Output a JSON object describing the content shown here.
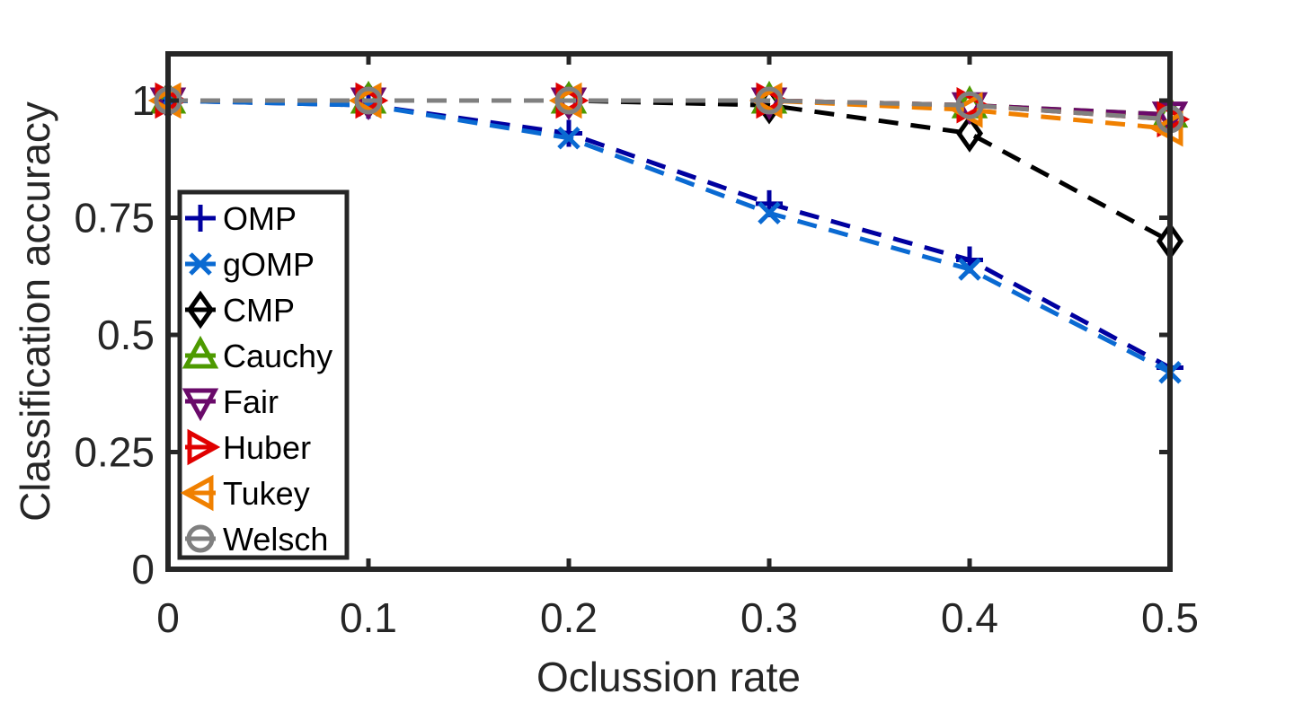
{
  "chart_data": {
    "type": "line",
    "title": "",
    "xlabel": "Oclussion rate",
    "ylabel": "Classification accuracy",
    "xlim": [
      0,
      0.5
    ],
    "ylim": [
      0,
      1.1
    ],
    "x": [
      0,
      0.1,
      0.2,
      0.3,
      0.4,
      0.5
    ],
    "x_ticks": [
      "0",
      "0.1",
      "0.2",
      "0.3",
      "0.4",
      "0.5"
    ],
    "y_ticks": [
      {
        "value": 0,
        "label": "0"
      },
      {
        "value": 0.25,
        "label": "0.25"
      },
      {
        "value": 0.5,
        "label": "0.5"
      },
      {
        "value": 0.75,
        "label": "0.75"
      },
      {
        "value": 1,
        "label": "1"
      }
    ],
    "grid": false,
    "legend_position": "bottom-left",
    "series": [
      {
        "name": "OMP",
        "color": "#0000a0",
        "marker": "plus",
        "values": [
          1.0,
          0.99,
          0.93,
          0.78,
          0.66,
          0.43
        ]
      },
      {
        "name": "gOMP",
        "color": "#0a6ad2",
        "marker": "x",
        "values": [
          1.0,
          0.99,
          0.92,
          0.76,
          0.64,
          0.42
        ]
      },
      {
        "name": "CMP",
        "color": "#000000",
        "marker": "diamond",
        "values": [
          1.0,
          1.0,
          1.0,
          0.99,
          0.93,
          0.7
        ]
      },
      {
        "name": "Cauchy",
        "color": "#4d9a00",
        "marker": "triangle-up",
        "values": [
          1.0,
          1.0,
          1.0,
          1.0,
          0.99,
          0.97
        ]
      },
      {
        "name": "Fair",
        "color": "#6a0a6a",
        "marker": "triangle-down",
        "values": [
          1.0,
          1.0,
          1.0,
          1.0,
          0.99,
          0.97
        ]
      },
      {
        "name": "Huber",
        "color": "#e00000",
        "marker": "triangle-right",
        "values": [
          1.0,
          1.0,
          1.0,
          1.0,
          0.99,
          0.96
        ]
      },
      {
        "name": "Tukey",
        "color": "#f08000",
        "marker": "triangle-left",
        "values": [
          1.0,
          1.0,
          1.0,
          1.0,
          0.98,
          0.94
        ]
      },
      {
        "name": "Welsch",
        "color": "#808080",
        "marker": "circle",
        "values": [
          1.0,
          1.0,
          1.0,
          1.0,
          0.99,
          0.96
        ]
      }
    ]
  }
}
